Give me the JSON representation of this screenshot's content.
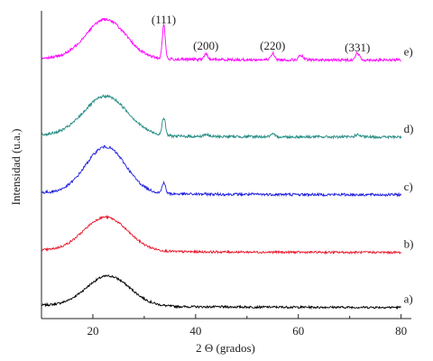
{
  "chart_data": {
    "type": "line",
    "title": "",
    "xlabel": "2 Θ (grados)",
    "ylabel": "Intensidad (u.a.)",
    "xlim": [
      10,
      82
    ],
    "ylim": [
      0,
      5.6
    ],
    "x_ticks": [
      20,
      40,
      60,
      80
    ],
    "y_ticks_shown": false,
    "grid": false,
    "legend": "none",
    "peak_annotations": [
      {
        "label": "(111)",
        "x": 33.8
      },
      {
        "label": "(200)",
        "x": 42.0
      },
      {
        "label": "(220)",
        "x": 55.0
      },
      {
        "label": "(331)",
        "x": 71.5
      }
    ],
    "series": [
      {
        "label": "a)",
        "color": "#000000",
        "offset": 0.2,
        "hump": {
          "center": 23.0,
          "height": 0.55,
          "width": 6.0
        },
        "peaks": [],
        "noise": 0.02
      },
      {
        "label": "b)",
        "color": "#e8192c",
        "offset": 1.2,
        "hump": {
          "center": 22.5,
          "height": 0.62,
          "width": 6.0
        },
        "peaks": [],
        "noise": 0.02
      },
      {
        "label": "c)",
        "color": "#1f1fe0",
        "offset": 2.25,
        "hump": {
          "center": 22.5,
          "height": 0.85,
          "width": 5.5
        },
        "peaks": [
          {
            "x": 33.8,
            "height": 0.2,
            "width": 0.45
          }
        ],
        "noise": 0.025
      },
      {
        "label": "d)",
        "color": "#1f8a80",
        "offset": 3.3,
        "hump": {
          "center": 22.5,
          "height": 0.72,
          "width": 6.0
        },
        "peaks": [
          {
            "x": 33.8,
            "height": 0.32,
            "width": 0.45
          },
          {
            "x": 42.0,
            "height": 0.04,
            "width": 0.6
          },
          {
            "x": 55.0,
            "height": 0.04,
            "width": 0.6
          },
          {
            "x": 71.5,
            "height": 0.04,
            "width": 0.7
          }
        ],
        "noise": 0.025
      },
      {
        "label": "e)",
        "color": "#ff00ff",
        "offset": 4.7,
        "hump": {
          "center": 22.5,
          "height": 0.72,
          "width": 5.5
        },
        "peaks": [
          {
            "x": 33.8,
            "height": 0.62,
            "width": 0.4
          },
          {
            "x": 42.0,
            "height": 0.1,
            "width": 0.5
          },
          {
            "x": 55.0,
            "height": 0.12,
            "width": 0.5
          },
          {
            "x": 60.5,
            "height": 0.08,
            "width": 0.6
          },
          {
            "x": 71.5,
            "height": 0.12,
            "width": 0.6
          }
        ],
        "noise": 0.025
      }
    ]
  }
}
